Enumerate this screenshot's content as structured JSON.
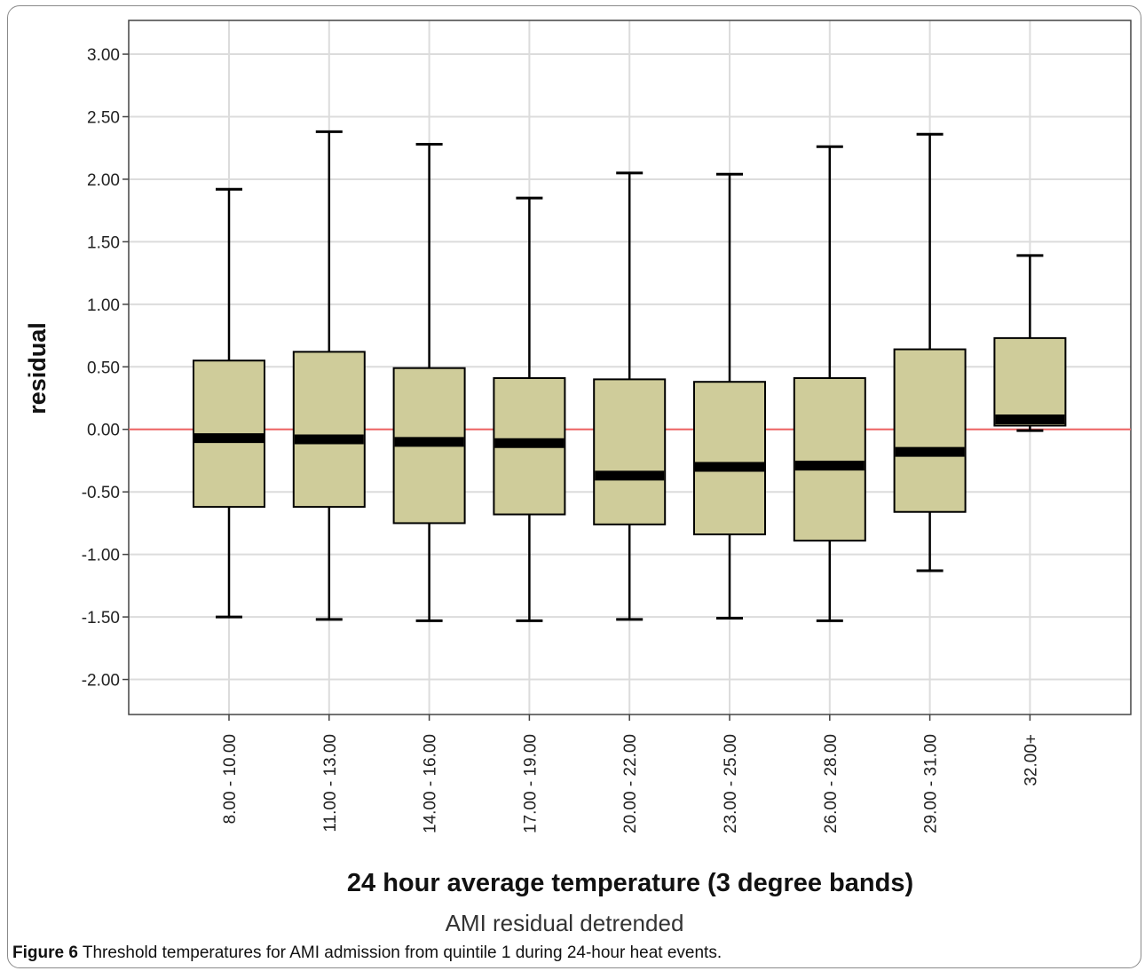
{
  "chart_data": {
    "type": "box",
    "categories": [
      "8.00 - 10.00",
      "11.00 - 13.00",
      "14.00 - 16.00",
      "17.00 - 19.00",
      "20.00 - 22.00",
      "23.00 - 25.00",
      "26.00 - 28.00",
      "29.00 - 31.00",
      "32.00+"
    ],
    "boxes": [
      {
        "whisker_low": -1.5,
        "q1": -0.62,
        "median": -0.07,
        "q3": 0.55,
        "whisker_high": 1.92
      },
      {
        "whisker_low": -1.52,
        "q1": -0.62,
        "median": -0.08,
        "q3": 0.62,
        "whisker_high": 2.38
      },
      {
        "whisker_low": -1.53,
        "q1": -0.75,
        "median": -0.1,
        "q3": 0.49,
        "whisker_high": 2.28
      },
      {
        "whisker_low": -1.53,
        "q1": -0.68,
        "median": -0.11,
        "q3": 0.41,
        "whisker_high": 1.85
      },
      {
        "whisker_low": -1.52,
        "q1": -0.76,
        "median": -0.37,
        "q3": 0.4,
        "whisker_high": 2.05
      },
      {
        "whisker_low": -1.51,
        "q1": -0.84,
        "median": -0.3,
        "q3": 0.38,
        "whisker_high": 2.04
      },
      {
        "whisker_low": -1.53,
        "q1": -0.89,
        "median": -0.29,
        "q3": 0.41,
        "whisker_high": 2.26
      },
      {
        "whisker_low": -1.13,
        "q1": -0.66,
        "median": -0.18,
        "q3": 0.64,
        "whisker_high": 2.36
      },
      {
        "whisker_low": -0.01,
        "q1": 0.03,
        "median": 0.08,
        "q3": 0.73,
        "whisker_high": 1.39
      }
    ],
    "yticks": [
      -2.0,
      -1.5,
      -1.0,
      -0.5,
      0.0,
      0.5,
      1.0,
      1.5,
      2.0,
      2.5,
      3.0
    ],
    "ytick_labels": [
      "-2.00",
      "-1.50",
      "-1.00",
      "-0.50",
      "0.00",
      "0.50",
      "1.00",
      "1.50",
      "2.00",
      "2.50",
      "3.00"
    ],
    "ylim": [
      -2.28,
      3.27
    ],
    "reference_line": 0.0,
    "xlabel": "24 hour average temperature (3 degree bands)",
    "ylabel": "residual",
    "subtitle": "AMI residual detrended",
    "grid": true,
    "colors": {
      "box_fill": "#cfcc9a",
      "reference_line": "#f06464",
      "grid": "#dcdcdc",
      "median": "#000000"
    }
  },
  "caption": {
    "label": "Figure 6",
    "text": " Threshold temperatures for AMI admission from quintile 1 during 24-hour heat events."
  }
}
